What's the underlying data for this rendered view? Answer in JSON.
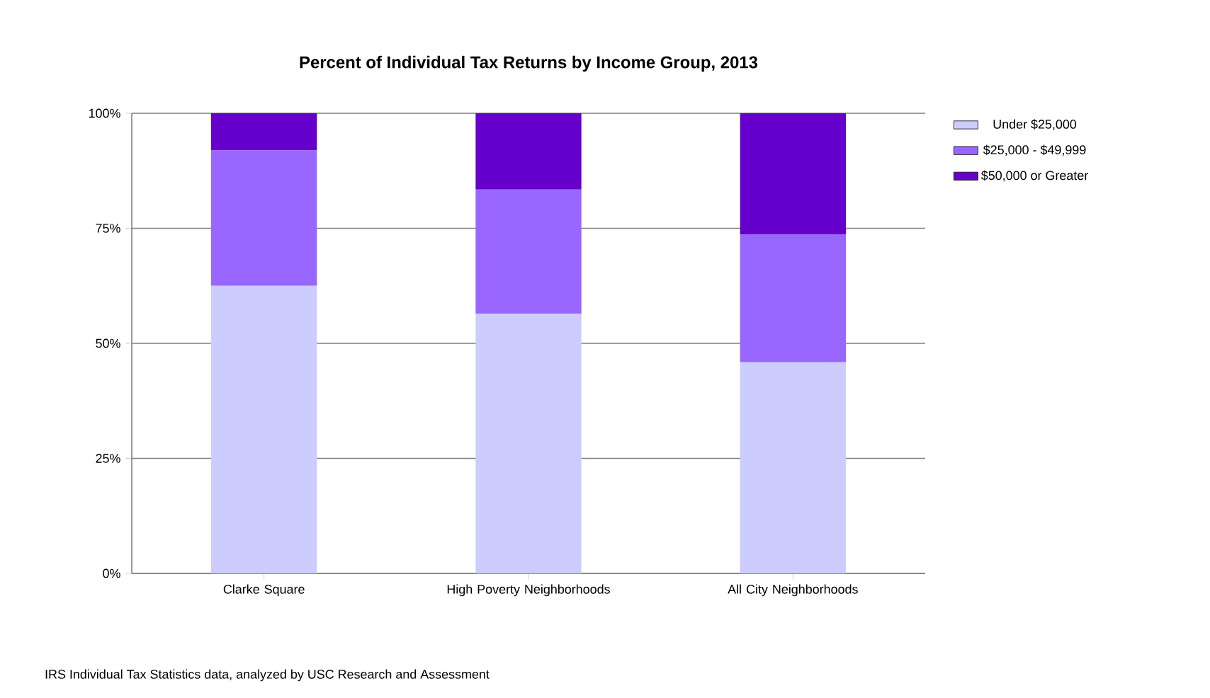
{
  "chart_data": {
    "type": "bar",
    "stacked": true,
    "title": "Percent of Individual Tax Returns by Income Group, 2013",
    "categories": [
      "Clarke Square",
      "High Poverty Neighborhoods",
      "All City Neighborhoods"
    ],
    "series": [
      {
        "name": "Under $25,000",
        "color": "#ccccff",
        "values": [
          62.5,
          56.4,
          45.9
        ]
      },
      {
        "name": "$25,000 - $49,999",
        "color": "#9966ff",
        "values": [
          29.4,
          27,
          27.7
        ]
      },
      {
        "name": "$50,000 or Greater",
        "color": "#6600cc",
        "values": [
          8.1,
          16.6,
          26.4
        ]
      }
    ],
    "ylim": [
      0,
      100
    ],
    "yticks": [
      {
        "value": 0,
        "label": "0%"
      },
      {
        "value": 25,
        "label": "25%"
      },
      {
        "value": 50,
        "label": "50%"
      },
      {
        "value": 75,
        "label": "75%"
      },
      {
        "value": 100,
        "label": "100%"
      }
    ],
    "grid": "y",
    "legend": "right",
    "annotations": [
      "IRS Individual Tax Statistics data, analyzed by USC Research and Assessment"
    ]
  }
}
